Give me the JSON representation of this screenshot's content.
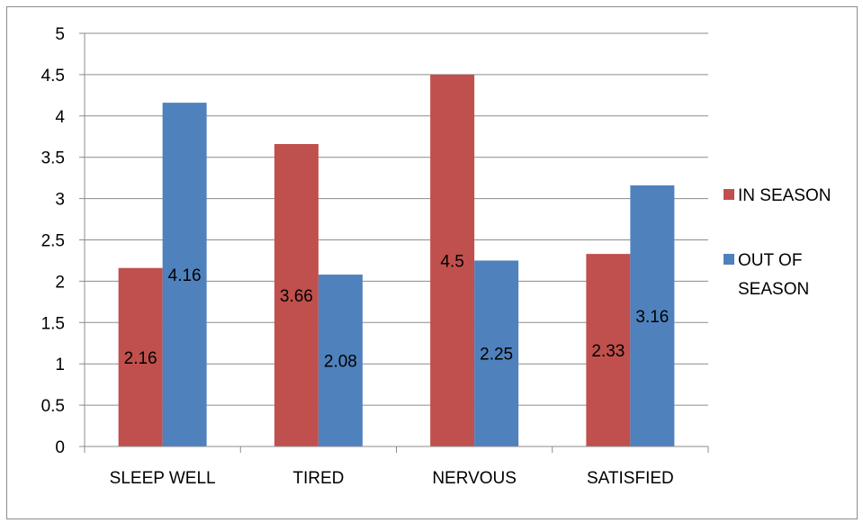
{
  "chart_data": {
    "type": "bar",
    "categories": [
      "SLEEP WELL",
      "TIRED",
      "NERVOUS",
      "SATISFIED"
    ],
    "series": [
      {
        "name": "IN SEASON",
        "color": "#c0504d",
        "values": [
          2.16,
          3.66,
          4.5,
          2.33
        ]
      },
      {
        "name": "OUT OF SEASON",
        "color": "#4f81bd",
        "values": [
          4.16,
          2.08,
          2.25,
          3.16
        ]
      }
    ],
    "yticks": [
      "0",
      "0.5",
      "1",
      "1.5",
      "2",
      "2.5",
      "3",
      "3.5",
      "4",
      "4.5",
      "5"
    ],
    "ylim": [
      0,
      5
    ],
    "grid": true,
    "legend": {
      "position": "right",
      "entries": [
        {
          "lines": [
            "IN SEASON"
          ]
        },
        {
          "lines": [
            "OUT OF",
            "SEASON"
          ]
        }
      ]
    }
  }
}
